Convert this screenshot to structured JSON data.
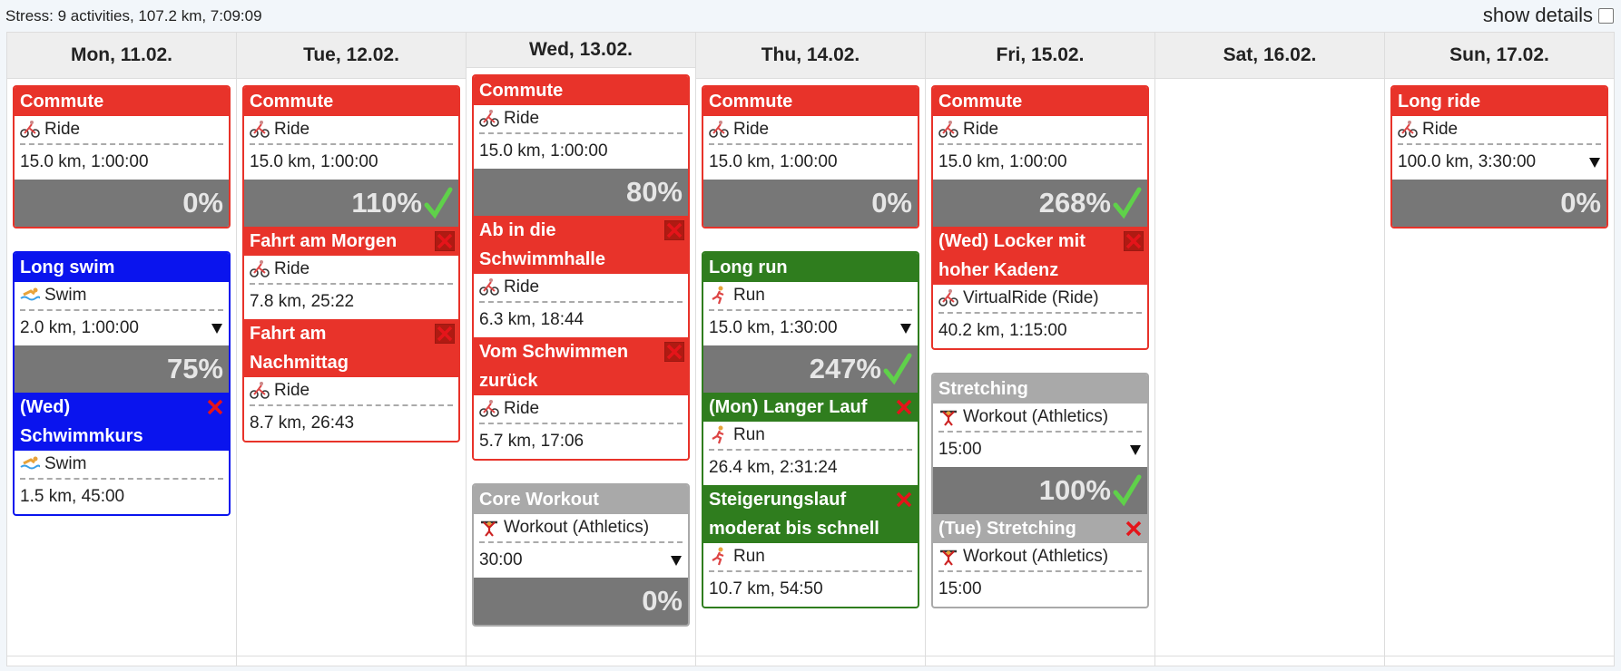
{
  "header": {
    "summary": "Stress: 9 activities, 107.2 km, 7:09:09",
    "toggle": "show details"
  },
  "days": [
    {
      "label": "Mon, 11.02.",
      "cards": [
        {
          "title": "Commute",
          "color": "#e8332a",
          "type": "Ride",
          "details": "15.0 km, 1:00:00",
          "percent": "0%"
        },
        {
          "title": "Long swim",
          "color": "#0a14ee",
          "type": "Swim",
          "details": "2.0 km, 1:00:00",
          "expandable": true,
          "percent": "75%",
          "activities": [
            {
              "title": "(Wed) Schwimmkurs",
              "type": "Swim",
              "details": "1.5 km, 45:00"
            }
          ]
        }
      ]
    },
    {
      "label": "Tue, 12.02.",
      "cards": [
        {
          "title": "Commute",
          "color": "#e8332a",
          "type": "Ride",
          "details": "15.0 km, 1:00:00",
          "percent": "110%",
          "done": true,
          "activities": [
            {
              "title": "Fahrt am Morgen",
              "type": "Ride",
              "details": "7.8 km, 25:22"
            },
            {
              "title": "Fahrt am Nachmittag",
              "type": "Ride",
              "details": "8.7 km, 26:43"
            }
          ]
        }
      ]
    },
    {
      "label": "Wed, 13.02.",
      "cards": [
        {
          "title": "Commute",
          "color": "#e8332a",
          "type": "Ride",
          "details": "15.0 km, 1:00:00",
          "percent": "80%",
          "activities": [
            {
              "title": "Ab in die Schwimmhalle",
              "type": "Ride",
              "details": "6.3 km, 18:44"
            },
            {
              "title": "Vom Schwimmen zurück",
              "type": "Ride",
              "details": "5.7 km, 17:06"
            }
          ]
        },
        {
          "title": "Core Workout",
          "color": "#a9a9a9",
          "type": "Workout (Athletics)",
          "details": "30:00",
          "expandable": true,
          "percent": "0%"
        }
      ]
    },
    {
      "label": "Thu, 14.02.",
      "cards": [
        {
          "title": "Commute",
          "color": "#e8332a",
          "type": "Ride",
          "details": "15.0 km, 1:00:00",
          "percent": "0%"
        },
        {
          "title": "Long run",
          "color": "#2f7d1e",
          "type": "Run",
          "details": "15.0 km, 1:30:00",
          "expandable": true,
          "percent": "247%",
          "done": true,
          "activities": [
            {
              "title": "(Mon) Langer Lauf",
              "type": "Run",
              "details": "26.4 km, 2:31:24"
            },
            {
              "title": "Steigerungslauf moderat bis schnell",
              "type": "Run",
              "details": "10.7 km, 54:50"
            }
          ]
        }
      ]
    },
    {
      "label": "Fri, 15.02.",
      "cards": [
        {
          "title": "Commute",
          "color": "#e8332a",
          "type": "Ride",
          "details": "15.0 km, 1:00:00",
          "percent": "268%",
          "done": true,
          "activities": [
            {
              "title": "(Wed) Locker mit hoher Kadenz",
              "type": "VirtualRide (Ride)",
              "details": "40.2 km, 1:15:00"
            }
          ]
        },
        {
          "title": "Stretching",
          "color": "#a9a9a9",
          "type": "Workout (Athletics)",
          "details": "15:00",
          "expandable": true,
          "percent": "100%",
          "done": true,
          "activities": [
            {
              "title": "(Tue) Stretching",
              "type": "Workout (Athletics)",
              "details": "15:00"
            }
          ]
        }
      ]
    },
    {
      "label": "Sat, 16.02.",
      "cards": []
    },
    {
      "label": "Sun, 17.02.",
      "cards": [
        {
          "title": "Long ride",
          "color": "#e8332a",
          "type": "Ride",
          "details": "100.0 km, 3:30:00",
          "expandable": true,
          "percent": "0%"
        }
      ]
    }
  ]
}
